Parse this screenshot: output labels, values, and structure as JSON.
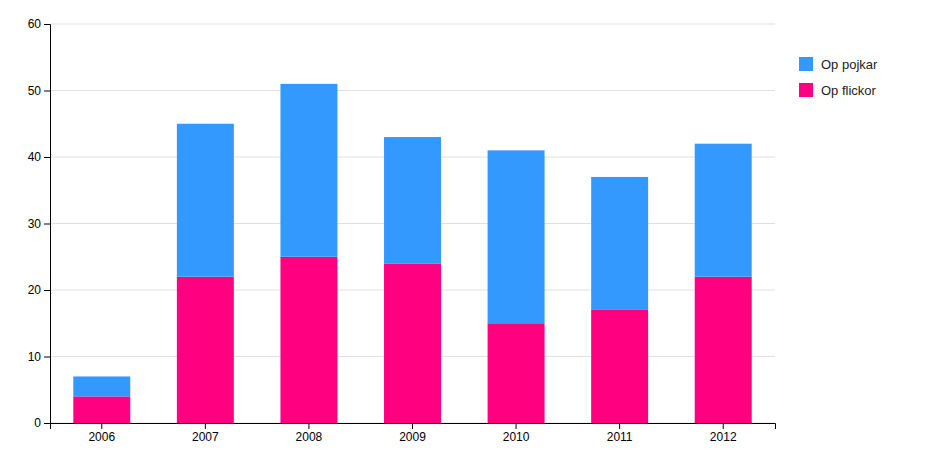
{
  "chart_data": {
    "type": "bar",
    "stacked": true,
    "categories": [
      "2006",
      "2007",
      "2008",
      "2009",
      "2010",
      "2011",
      "2012"
    ],
    "series": [
      {
        "name": "Op flickor",
        "color": "#FF0080",
        "values": [
          4,
          22,
          25,
          24,
          15,
          17,
          22
        ]
      },
      {
        "name": "Op pojkar",
        "color": "#3399FF",
        "values": [
          3,
          23,
          26,
          19,
          26,
          20,
          20
        ]
      }
    ],
    "ylim": [
      0,
      60
    ],
    "yticks": [
      0,
      10,
      20,
      30,
      40,
      50,
      60
    ],
    "grid": true,
    "legend": "right"
  }
}
